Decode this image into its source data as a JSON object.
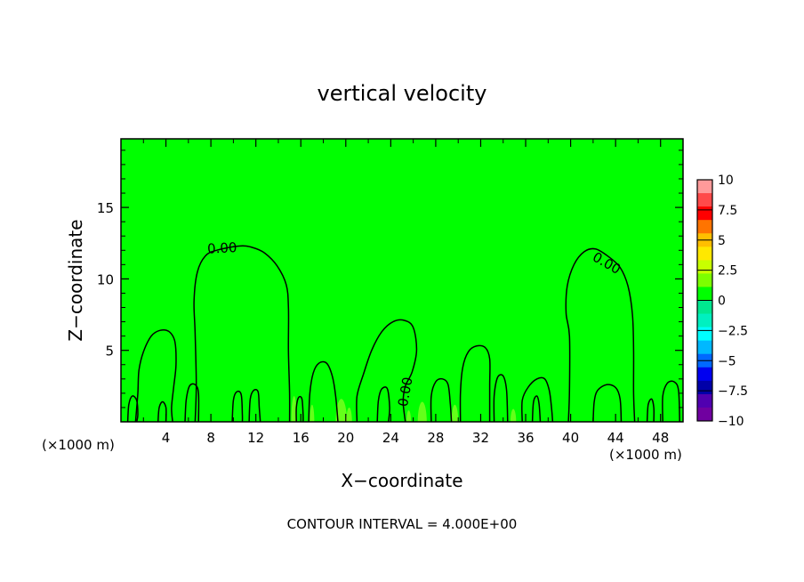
{
  "chart_data": {
    "type": "contour",
    "title": "vertical velocity",
    "xlabel": "X−coordinate",
    "ylabel": "Z−coordinate",
    "x_unit_left": "(×1000 m)",
    "x_unit_right": "(×1000 m)",
    "xlim": [
      0,
      50
    ],
    "ylim": [
      0,
      19.8
    ],
    "x_ticks": [
      4,
      8,
      12,
      16,
      20,
      24,
      28,
      32,
      36,
      40,
      44,
      48
    ],
    "x_tick_labels": [
      "4",
      "8",
      "12",
      "16",
      "20",
      "24",
      "28",
      "32",
      "36",
      "40",
      "44",
      "48"
    ],
    "y_ticks": [
      5,
      10,
      15
    ],
    "y_tick_labels": [
      "5",
      "10",
      "15"
    ],
    "footer": "CONTOUR INTERVAL = 4.000E+00",
    "contour_label": "0.00",
    "background_color": "#00ff00",
    "colorbar": {
      "levels": [
        "10",
        "7.5",
        "5",
        "2.5",
        "0",
        "−2.5",
        "−5",
        "−7.5",
        "−10"
      ],
      "colors": [
        "#ff9a9a",
        "#ff4a4a",
        "#ff0000",
        "#ff7400",
        "#ffbf00",
        "#ffe800",
        "#c8ff00",
        "#7cff00",
        "#00ff00",
        "#00e890",
        "#00f0c0",
        "#00ffff",
        "#00b8ff",
        "#0068ff",
        "#0000f0",
        "#0000a8",
        "#5000b0",
        "#7000a0"
      ]
    },
    "zero_contours": [
      {
        "name": "plume-x10",
        "points": [
          [
            6.6,
            0
          ],
          [
            6.7,
            2.6
          ],
          [
            6.6,
            6.2
          ],
          [
            6.5,
            8.5
          ],
          [
            6.8,
            10.5
          ],
          [
            7.5,
            11.6
          ],
          [
            8.5,
            12.0
          ],
          [
            10.5,
            12.3
          ],
          [
            11.7,
            12.2
          ],
          [
            12.8,
            11.8
          ],
          [
            13.9,
            10.9
          ],
          [
            14.7,
            9.6
          ],
          [
            14.9,
            8.0
          ],
          [
            14.9,
            5.0
          ],
          [
            15.0,
            2.0
          ],
          [
            15.0,
            0
          ]
        ]
      },
      {
        "name": "plume-x43",
        "points": [
          [
            39.8,
            0
          ],
          [
            39.9,
            2.2
          ],
          [
            39.9,
            6.0
          ],
          [
            39.6,
            7.6
          ],
          [
            39.7,
            9.5
          ],
          [
            40.3,
            11.0
          ],
          [
            41.2,
            11.9
          ],
          [
            42.2,
            12.1
          ],
          [
            43.3,
            11.6
          ],
          [
            44.4,
            10.8
          ],
          [
            45.1,
            9.5
          ],
          [
            45.5,
            7.5
          ],
          [
            45.6,
            5.0
          ],
          [
            45.6,
            2.0
          ],
          [
            45.7,
            0
          ]
        ]
      },
      {
        "name": "hill-x4",
        "points": [
          [
            1.3,
            0
          ],
          [
            1.5,
            2.0
          ],
          [
            1.6,
            3.6
          ],
          [
            2.0,
            4.9
          ],
          [
            2.7,
            6.0
          ],
          [
            3.5,
            6.4
          ],
          [
            4.3,
            6.3
          ],
          [
            4.8,
            5.6
          ],
          [
            4.9,
            4.0
          ],
          [
            4.7,
            2.5
          ],
          [
            4.5,
            1.0
          ],
          [
            4.6,
            0
          ]
        ]
      },
      {
        "name": "hill-x25",
        "points": [
          [
            21.0,
            0
          ],
          [
            21.0,
            1.8
          ],
          [
            21.6,
            3.4
          ],
          [
            22.3,
            5.0
          ],
          [
            23.2,
            6.3
          ],
          [
            24.2,
            7.0
          ],
          [
            25.2,
            7.1
          ],
          [
            26.0,
            6.6
          ],
          [
            26.3,
            5.0
          ],
          [
            25.9,
            3.5
          ],
          [
            25.3,
            2.5
          ],
          [
            25.1,
            1.4
          ],
          [
            25.3,
            0
          ]
        ]
      },
      {
        "name": "hill-x31",
        "points": [
          [
            30.2,
            0
          ],
          [
            30.2,
            2.0
          ],
          [
            30.4,
            3.8
          ],
          [
            30.9,
            4.9
          ],
          [
            31.6,
            5.3
          ],
          [
            32.4,
            5.2
          ],
          [
            32.8,
            4.4
          ],
          [
            32.8,
            2.5
          ],
          [
            32.8,
            0
          ]
        ]
      },
      {
        "name": "small-a",
        "points": [
          [
            0.6,
            0
          ],
          [
            0.7,
            1.2
          ],
          [
            1.0,
            1.8
          ],
          [
            1.4,
            1.5
          ],
          [
            1.5,
            0.5
          ],
          [
            1.4,
            0
          ]
        ]
      },
      {
        "name": "small-b",
        "points": [
          [
            3.3,
            0
          ],
          [
            3.4,
            1.0
          ],
          [
            3.7,
            1.4
          ],
          [
            4.0,
            1.0
          ],
          [
            4.0,
            0
          ]
        ]
      },
      {
        "name": "small-c",
        "points": [
          [
            5.7,
            0
          ],
          [
            5.8,
            1.5
          ],
          [
            6.1,
            2.5
          ],
          [
            6.6,
            2.6
          ],
          [
            6.9,
            2.0
          ],
          [
            6.9,
            0
          ]
        ]
      },
      {
        "name": "small-d",
        "points": [
          [
            9.9,
            0
          ],
          [
            10.0,
            1.5
          ],
          [
            10.3,
            2.1
          ],
          [
            10.7,
            1.9
          ],
          [
            10.8,
            0.5
          ],
          [
            10.8,
            0
          ]
        ]
      },
      {
        "name": "small-e",
        "points": [
          [
            11.4,
            0
          ],
          [
            11.5,
            1.6
          ],
          [
            11.8,
            2.2
          ],
          [
            12.2,
            2.1
          ],
          [
            12.3,
            1.0
          ],
          [
            12.4,
            0
          ]
        ]
      },
      {
        "name": "small-f",
        "points": [
          [
            15.6,
            0
          ],
          [
            15.6,
            1.0
          ],
          [
            15.8,
            1.7
          ],
          [
            16.1,
            1.6
          ],
          [
            16.2,
            0.5
          ],
          [
            16.2,
            0
          ]
        ]
      },
      {
        "name": "small-g",
        "points": [
          [
            16.7,
            0
          ],
          [
            16.8,
            2.0
          ],
          [
            17.1,
            3.4
          ],
          [
            17.6,
            4.1
          ],
          [
            18.3,
            4.1
          ],
          [
            18.8,
            3.2
          ],
          [
            19.1,
            1.8
          ],
          [
            19.3,
            0
          ]
        ]
      },
      {
        "name": "small-h",
        "points": [
          [
            22.8,
            0
          ],
          [
            22.9,
            1.5
          ],
          [
            23.2,
            2.3
          ],
          [
            23.7,
            2.3
          ],
          [
            23.9,
            1.0
          ],
          [
            23.8,
            0
          ]
        ]
      },
      {
        "name": "small-i",
        "points": [
          [
            27.6,
            0
          ],
          [
            27.6,
            1.8
          ],
          [
            28.0,
            2.8
          ],
          [
            28.6,
            3.0
          ],
          [
            29.1,
            2.6
          ],
          [
            29.3,
            1.2
          ],
          [
            29.4,
            0
          ]
        ]
      },
      {
        "name": "small-j",
        "points": [
          [
            33.2,
            0
          ],
          [
            33.2,
            1.8
          ],
          [
            33.5,
            3.1
          ],
          [
            34.0,
            3.2
          ],
          [
            34.3,
            2.2
          ],
          [
            34.4,
            0
          ]
        ]
      },
      {
        "name": "small-k",
        "points": [
          [
            35.7,
            0
          ],
          [
            35.7,
            1.5
          ],
          [
            36.2,
            2.4
          ],
          [
            37.0,
            3.0
          ],
          [
            37.7,
            3.0
          ],
          [
            38.1,
            2.2
          ],
          [
            38.3,
            1.0
          ],
          [
            38.4,
            0
          ]
        ]
      },
      {
        "name": "small-l",
        "points": [
          [
            36.6,
            0
          ],
          [
            36.7,
            1.4
          ],
          [
            37.0,
            1.8
          ],
          [
            37.2,
            1.2
          ],
          [
            37.3,
            0
          ]
        ]
      },
      {
        "name": "small-m",
        "points": [
          [
            42.0,
            0
          ],
          [
            42.1,
            1.4
          ],
          [
            42.4,
            2.2
          ],
          [
            43.2,
            2.6
          ],
          [
            44.0,
            2.4
          ],
          [
            44.4,
            1.6
          ],
          [
            44.5,
            0
          ]
        ]
      },
      {
        "name": "small-n",
        "points": [
          [
            46.8,
            0
          ],
          [
            46.9,
            1.2
          ],
          [
            47.2,
            1.6
          ],
          [
            47.4,
            1.0
          ],
          [
            47.4,
            0
          ]
        ]
      },
      {
        "name": "small-o",
        "points": [
          [
            48.2,
            0
          ],
          [
            48.2,
            1.8
          ],
          [
            48.6,
            2.7
          ],
          [
            49.2,
            2.8
          ],
          [
            49.6,
            2.2
          ],
          [
            49.7,
            0
          ]
        ]
      }
    ],
    "contour_labels": [
      {
        "text": "0.00",
        "x": 9.0,
        "y": 12.15,
        "angle": -3
      },
      {
        "text": "0.00",
        "x": 43.2,
        "y": 11.1,
        "angle": 30
      },
      {
        "text": "0.00",
        "x": 25.3,
        "y": 2.1,
        "angle": -80
      }
    ],
    "warm_spots": [
      {
        "x": 15.4,
        "w": 0.5,
        "h": 1.8
      },
      {
        "x": 17.0,
        "w": 0.4,
        "h": 1.2
      },
      {
        "x": 19.6,
        "w": 1.0,
        "h": 1.6
      },
      {
        "x": 20.3,
        "w": 0.5,
        "h": 1.0
      },
      {
        "x": 25.6,
        "w": 0.4,
        "h": 0.8
      },
      {
        "x": 26.8,
        "w": 0.8,
        "h": 1.4
      },
      {
        "x": 29.7,
        "w": 0.6,
        "h": 1.2
      },
      {
        "x": 34.9,
        "w": 0.5,
        "h": 0.9
      }
    ]
  }
}
